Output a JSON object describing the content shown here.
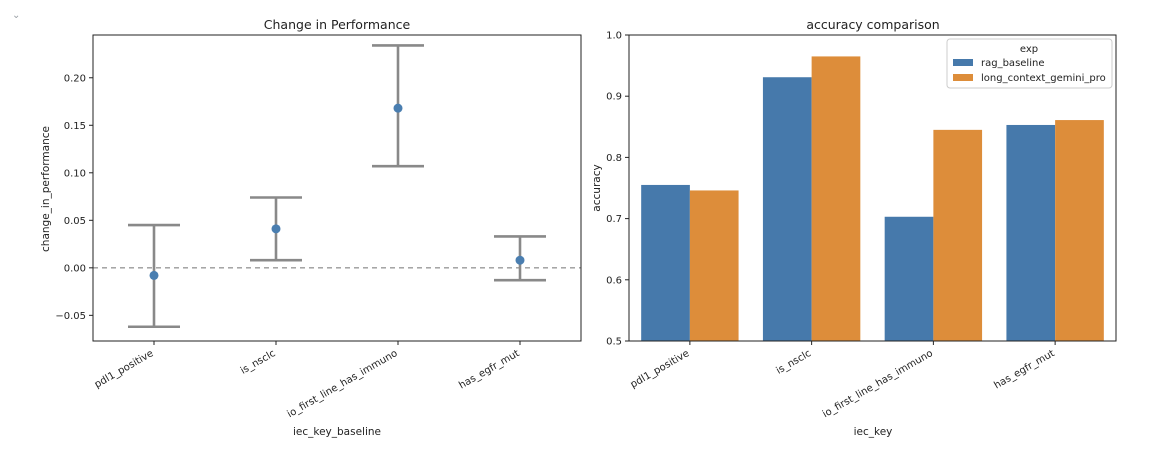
{
  "cell_ui": {
    "collapse_icon": "chevron-down-icon",
    "collapse_glyph": "⌄"
  },
  "chart_data": [
    {
      "type": "scatter",
      "title": "Change in Performance",
      "xlabel": "iec_key_baseline",
      "ylabel": "change_in_performance",
      "categories": [
        "pdl1_positive",
        "is_nsclc",
        "io_first_line_has_immuno",
        "has_egfr_mut"
      ],
      "values": [
        -0.008,
        0.041,
        0.168,
        0.008
      ],
      "error_low": [
        -0.062,
        0.008,
        0.107,
        -0.013
      ],
      "error_high": [
        0.045,
        0.074,
        0.234,
        0.033
      ],
      "ylim": [
        -0.077,
        0.245
      ],
      "yticks": [
        -0.05,
        0.0,
        0.05,
        0.1,
        0.15,
        0.2
      ],
      "ytick_labels": [
        "−0.05",
        "0.00",
        "0.05",
        "0.10",
        "0.15",
        "0.20"
      ],
      "reference_line": 0,
      "grid": false,
      "colors": {
        "point": "#4a7eb0",
        "errorbar": "#898989",
        "reference": "#9a9a9a"
      }
    },
    {
      "type": "bar",
      "title": "accuracy comparison",
      "xlabel": "iec_key",
      "ylabel": "accuracy",
      "categories": [
        "pdl1_positive",
        "is_nsclc",
        "io_first_line_has_immuno",
        "has_egfr_mut"
      ],
      "series": [
        {
          "name": "rag_baseline",
          "values": [
            0.755,
            0.931,
            0.703,
            0.853
          ],
          "color": "#4679ab"
        },
        {
          "name": "long_context_gemini_pro",
          "values": [
            0.746,
            0.965,
            0.845,
            0.861
          ],
          "color": "#dd8d3a"
        }
      ],
      "ylim": [
        0.5,
        1.0
      ],
      "yticks": [
        0.5,
        0.6,
        0.7,
        0.8,
        0.9,
        1.0
      ],
      "ytick_labels": [
        "0.5",
        "0.6",
        "0.7",
        "0.8",
        "0.9",
        "1.0"
      ],
      "legend": {
        "title": "exp",
        "position": "top-right"
      },
      "grid": false
    }
  ]
}
